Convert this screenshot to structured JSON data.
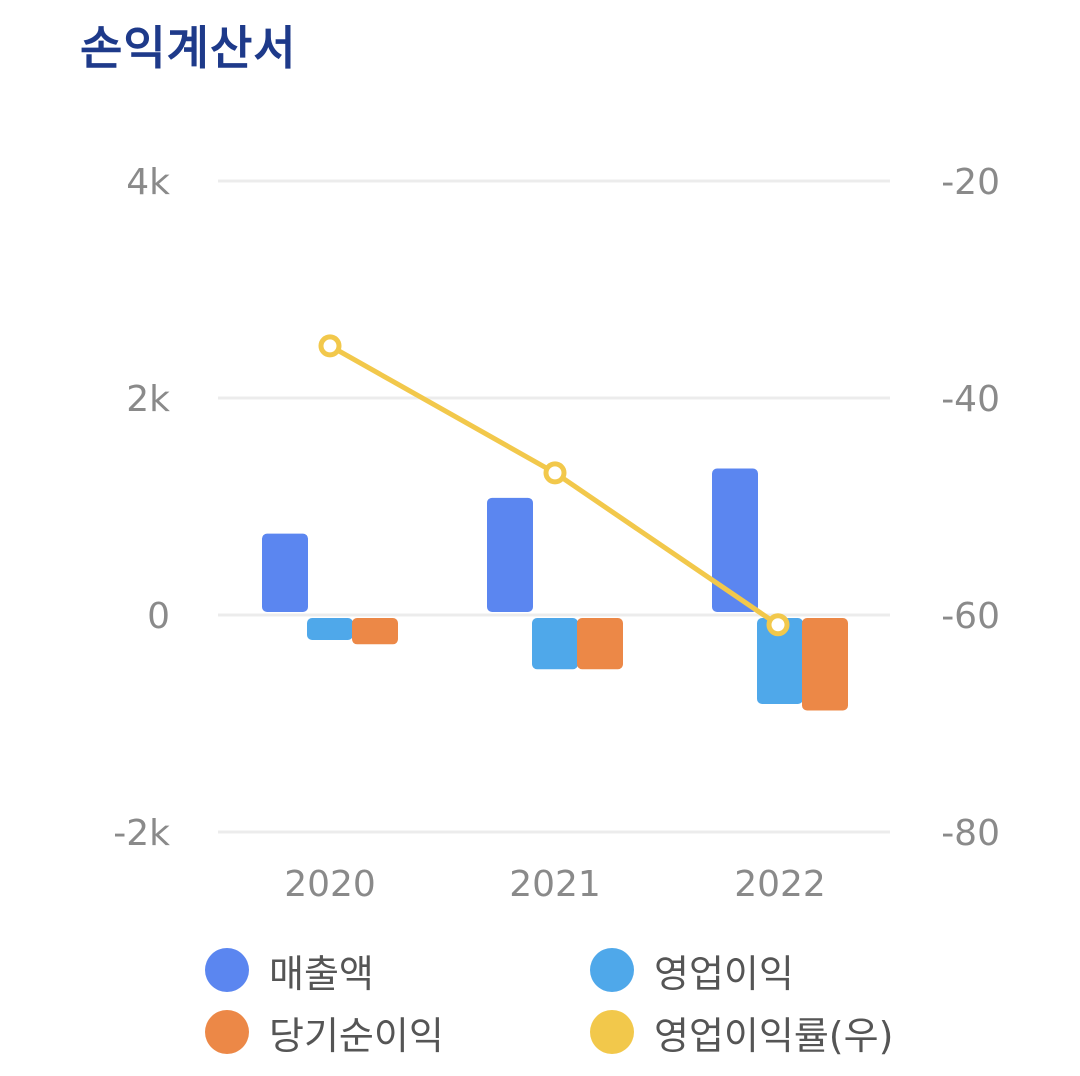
{
  "title": "손익계산서",
  "chart_data": {
    "type": "bar",
    "categories": [
      "2020",
      "2021",
      "2022"
    ],
    "y_left": {
      "ticks": [
        "4k",
        "2k",
        "0",
        "-2k"
      ],
      "range": [
        -2000,
        4000
      ]
    },
    "y_right": {
      "ticks": [
        "-20",
        "-40",
        "-60",
        "-80"
      ],
      "range": [
        -80,
        -20
      ]
    },
    "series": [
      {
        "name": "매출액",
        "type": "bar",
        "axis": "left",
        "color": "#5b86f0",
        "values": [
          750,
          1080,
          1350
        ]
      },
      {
        "name": "영업이익",
        "type": "bar",
        "axis": "left",
        "color": "#4fa8ea",
        "values": [
          -230,
          -500,
          -820
        ]
      },
      {
        "name": "당기순이익",
        "type": "bar",
        "axis": "left",
        "color": "#ec8847",
        "values": [
          -270,
          -500,
          -880
        ]
      },
      {
        "name": "영업이익률(우)",
        "type": "line",
        "axis": "right",
        "color": "#f2c84b",
        "values": [
          -35.2,
          -46.9,
          -60.9
        ]
      }
    ],
    "grid": true,
    "legend": "bottom"
  }
}
